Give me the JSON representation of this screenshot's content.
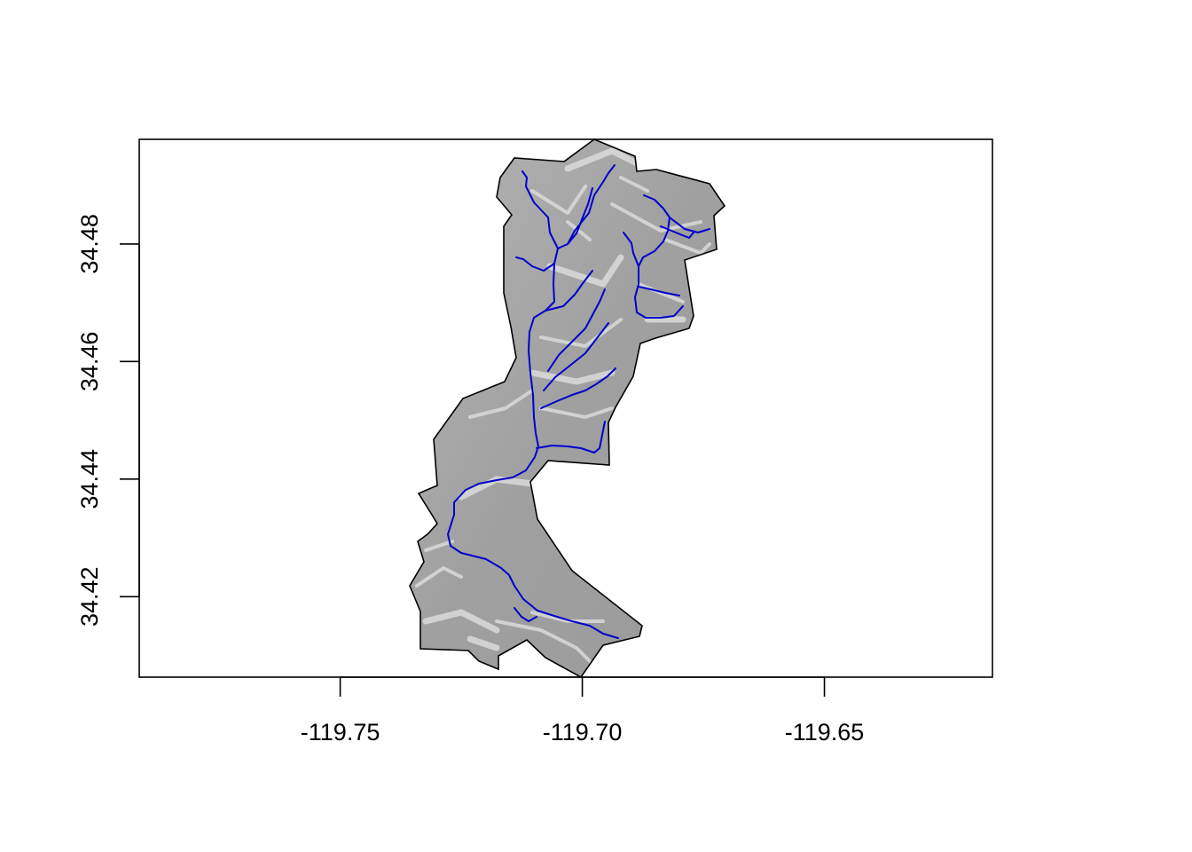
{
  "chart_data": {
    "type": "map",
    "title": "",
    "xlabel": "",
    "ylabel": "",
    "xlim": [
      -119.7915,
      -119.6153
    ],
    "ylim": [
      34.4063,
      34.4978
    ],
    "x_ticks": [
      {
        "value": -119.75,
        "label": "-119.75"
      },
      {
        "value": -119.7,
        "label": "-119.70"
      },
      {
        "value": -119.65,
        "label": "-119.65"
      }
    ],
    "y_ticks": [
      {
        "value": 34.42,
        "label": "34.42"
      },
      {
        "value": 34.44,
        "label": "34.44"
      },
      {
        "value": 34.46,
        "label": "34.46"
      },
      {
        "value": 34.48,
        "label": "34.48"
      }
    ],
    "colors": {
      "hillshade": "#a0a0a0",
      "hillshade_light": "#e2e2e2",
      "boundary": "#000000",
      "streams": "#0000cc"
    },
    "layers": [
      {
        "name": "watershed-boundary",
        "kind": "polygon",
        "coords": [
          [
            -119.7027,
            34.4978
          ],
          [
            -119.698,
            34.4957
          ],
          [
            -119.6954,
            34.4962
          ],
          [
            -119.6938,
            34.4943
          ],
          [
            -119.6911,
            34.4934
          ],
          [
            -119.6846,
            34.4923
          ],
          [
            -119.6781,
            34.4887
          ],
          [
            -119.6731,
            34.4846
          ],
          [
            -119.6746,
            34.4829
          ],
          [
            -119.6733,
            34.4815
          ],
          [
            -119.6736,
            34.4771
          ],
          [
            -119.6777,
            34.4731
          ],
          [
            -119.6774,
            34.469
          ],
          [
            -119.6818,
            34.4674
          ],
          [
            -119.6898,
            34.4646
          ],
          [
            -119.6908,
            34.4587
          ],
          [
            -119.6938,
            34.4534
          ],
          [
            -119.696,
            34.4495
          ],
          [
            -119.696,
            34.4484
          ],
          [
            -119.6967,
            34.4424
          ],
          [
            -119.7036,
            34.4434
          ],
          [
            -119.7071,
            34.4438
          ],
          [
            -119.7079,
            34.4449
          ],
          [
            -119.7082,
            34.4495
          ],
          [
            -119.7076,
            34.4525
          ],
          [
            -119.7067,
            34.4562
          ],
          [
            -119.7059,
            34.4581
          ],
          [
            -119.7054,
            34.4601
          ],
          [
            -119.705,
            34.463
          ],
          [
            -119.7047,
            34.466
          ],
          [
            -119.7049,
            34.4684
          ],
          [
            -119.7057,
            34.4702
          ],
          [
            -119.7078,
            34.4725
          ],
          [
            -119.7095,
            34.4745
          ],
          [
            -119.7108,
            34.4762
          ],
          [
            -119.7118,
            34.4787
          ],
          [
            -119.7148,
            34.4834
          ],
          [
            -119.7148,
            34.4866
          ],
          [
            -119.7136,
            34.4897
          ],
          [
            -119.7163,
            34.4925
          ],
          [
            -119.719,
            34.496
          ],
          [
            -119.7153,
            34.4968
          ],
          [
            -119.7142,
            34.4962
          ],
          [
            -119.7166,
            34.4968
          ],
          [
            -119.7114,
            34.497
          ],
          [
            -119.7085,
            34.4963
          ],
          [
            -119.705,
            34.496
          ]
        ]
      },
      {
        "name": "stream-network",
        "kind": "lines"
      }
    ]
  }
}
